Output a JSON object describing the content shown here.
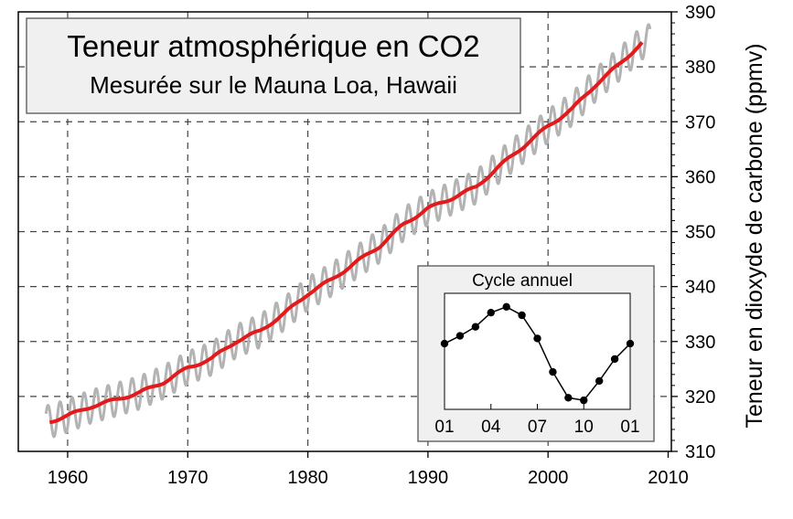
{
  "chart_data": [
    {
      "type": "line",
      "title": "Teneur atmosphérique en CO2",
      "subtitle": "Mesurée sur le Mauna Loa, Hawaii",
      "xlabel": "",
      "ylabel": "Teneur en dioxyde de carbone (ppmv)",
      "xlim": [
        1955,
        2010
      ],
      "ylim": [
        310,
        390
      ],
      "x_ticks": [
        "1960",
        "1970",
        "1980",
        "1990",
        "2000",
        "2010"
      ],
      "y_ticks": [
        "310",
        "320",
        "330",
        "340",
        "350",
        "360",
        "370",
        "380",
        "390"
      ],
      "grid": true,
      "seasonal_amplitude_ppm": 3,
      "series": [
        {
          "role": "monthly",
          "color": "#b3b3b3",
          "points": [
            [
              1958.2,
              315.7
            ],
            [
              2008.5,
              385.5
            ]
          ]
        },
        {
          "role": "trend",
          "color": "#e31a1c",
          "x": [
            1958.5,
            1960,
            1962,
            1964,
            1966,
            1968,
            1970,
            1972,
            1974,
            1976,
            1978,
            1980,
            1982,
            1984,
            1986,
            1988,
            1990,
            1992,
            1994,
            1996,
            1998,
            2000,
            2002,
            2004,
            2006,
            2008
          ],
          "y": [
            315.4,
            316.5,
            318.2,
            319.4,
            320.7,
            322.6,
            325.2,
            326.9,
            330.0,
            331.9,
            335.0,
            338.7,
            341.3,
            344.4,
            347.4,
            351.4,
            354.2,
            356.1,
            358.1,
            362.0,
            365.6,
            369.2,
            372.3,
            376.8,
            380.6,
            384.7
          ]
        }
      ]
    },
    {
      "type": "line",
      "title": "Cycle annuel",
      "x_ticks": [
        "01",
        "04",
        "07",
        "10",
        "01"
      ],
      "x": [
        1,
        2,
        3,
        4,
        5,
        6,
        7,
        8,
        9,
        10,
        11,
        12,
        13
      ],
      "y": [
        0.1,
        0.7,
        1.4,
        2.5,
        2.95,
        2.3,
        0.5,
        -2.1,
        -4.1,
        -4.3,
        -2.8,
        -1.1,
        0.1
      ],
      "ylim": [
        -5,
        4
      ],
      "marker": "circle",
      "color": "#000000"
    }
  ]
}
